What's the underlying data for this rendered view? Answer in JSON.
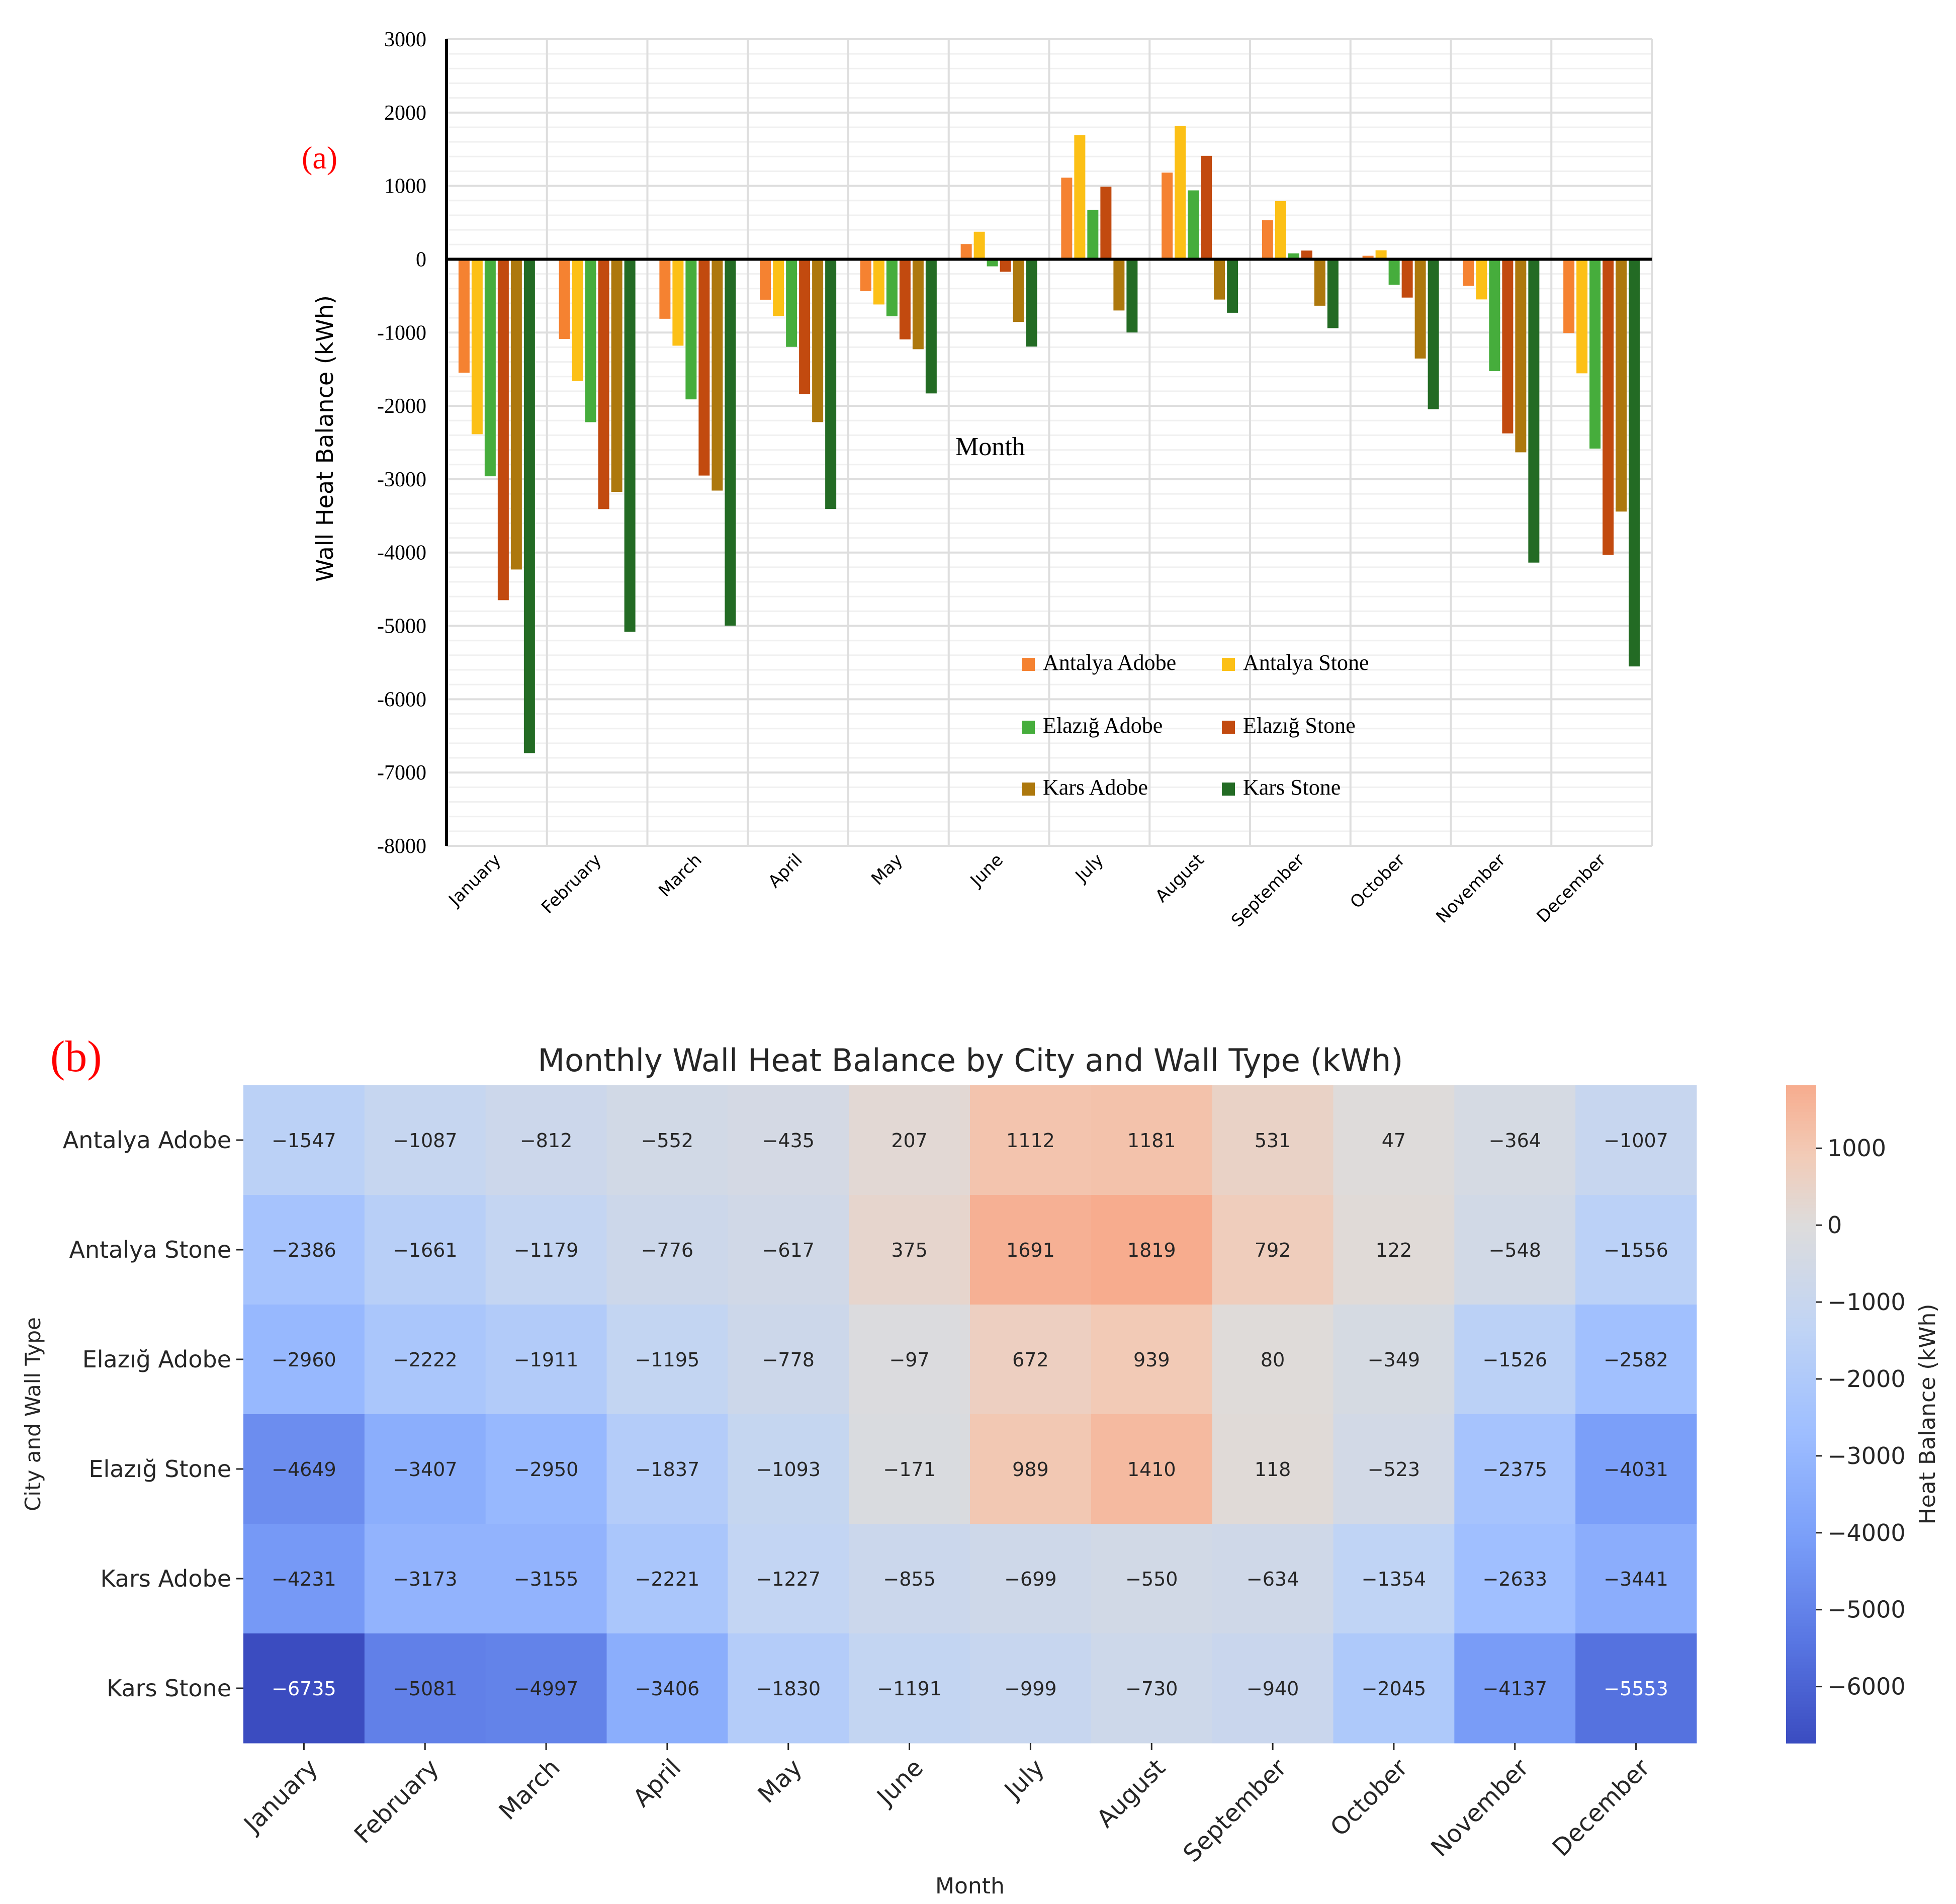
{
  "chart_data": [
    {
      "type": "bar",
      "panel_label": "(a)",
      "title": "",
      "xlabel": "Month",
      "ylabel": "Wall Heat Balance (kWh)",
      "ylim": [
        -8000,
        3000
      ],
      "yticks": [
        "3000",
        "2000",
        "1000",
        "0",
        "-1000",
        "-2000",
        "-3000",
        "-4000",
        "-5000",
        "-6000",
        "-7000",
        "-8000"
      ],
      "yticks_values": [
        3000,
        2000,
        1000,
        0,
        -1000,
        -2000,
        -3000,
        -4000,
        -5000,
        -6000,
        -7000,
        -8000
      ],
      "grid": true,
      "legend_position": "lower-right",
      "categories": [
        "January",
        "February",
        "March",
        "April",
        "May",
        "June",
        "July",
        "August",
        "September",
        "October",
        "November",
        "December"
      ],
      "series": [
        {
          "name": "Antalya Adobe",
          "color": "#f58231",
          "values": [
            -1547,
            -1087,
            -812,
            -552,
            -435,
            207,
            1112,
            1181,
            531,
            47,
            -364,
            -1007
          ]
        },
        {
          "name": "Antalya Stone",
          "color": "#fcc016",
          "values": [
            -2386,
            -1661,
            -1179,
            -776,
            -617,
            375,
            1691,
            1819,
            792,
            122,
            -548,
            -1556
          ]
        },
        {
          "name": "Elazığ Adobe",
          "color": "#46ad3c",
          "values": [
            -2960,
            -2222,
            -1911,
            -1195,
            -778,
            -97,
            672,
            939,
            80,
            -349,
            -1526,
            -2582
          ]
        },
        {
          "name": "Elazığ Stone",
          "color": "#c24a0f",
          "values": [
            -4649,
            -3407,
            -2950,
            -1837,
            -1093,
            -171,
            989,
            1410,
            118,
            -523,
            -2375,
            -4031
          ]
        },
        {
          "name": "Kars Adobe",
          "color": "#ad780d",
          "values": [
            -4231,
            -3173,
            -3155,
            -2221,
            -1227,
            -855,
            -699,
            -550,
            -634,
            -1354,
            -2633,
            -3441
          ]
        },
        {
          "name": "Kars Stone",
          "color": "#236b24",
          "values": [
            -6735,
            -5081,
            -4997,
            -3406,
            -1830,
            -1191,
            -999,
            -730,
            -940,
            -2045,
            -4137,
            -5553
          ]
        }
      ]
    },
    {
      "type": "heatmap",
      "panel_label": "(b)",
      "title": "Monthly Wall Heat Balance by City and Wall Type (kWh)",
      "xlabel": "Month",
      "ylabel": "City and Wall Type",
      "colorbar_label": "Heat Balance (kWh)",
      "colorbar_ticks": [
        "1000",
        "0",
        "−1000",
        "−2000",
        "−3000",
        "−4000",
        "−5000",
        "−6000"
      ],
      "colorbar_ticks_values": [
        1000,
        0,
        -1000,
        -2000,
        -3000,
        -4000,
        -5000,
        -6000
      ],
      "vmin": -6735,
      "vmax": 1819,
      "center": 0,
      "colormap": "coolwarm",
      "colormap_stops": [
        "#3b4cc0",
        "#5977e3",
        "#7b9ff9",
        "#9ebeff",
        "#c0d4f5",
        "#dddcdc",
        "#f2cbb7",
        "#f7ac8e"
      ],
      "columns": [
        "January",
        "February",
        "March",
        "April",
        "May",
        "June",
        "July",
        "August",
        "September",
        "October",
        "November",
        "December"
      ],
      "rows": [
        "Antalya Adobe",
        "Antalya Stone",
        "Elazığ Adobe",
        "Elazığ Stone",
        "Kars Adobe",
        "Kars Stone"
      ],
      "cell_labels": [
        [
          "−1547",
          "−1087",
          "−812",
          "−552",
          "−435",
          "207",
          "1112",
          "1181",
          "531",
          "47",
          "−364",
          "−1007"
        ],
        [
          "−2386",
          "−1661",
          "−1179",
          "−776",
          "−617",
          "375",
          "1691",
          "1819",
          "792",
          "122",
          "−548",
          "−1556"
        ],
        [
          "−2960",
          "−2222",
          "−1911",
          "−1195",
          "−778",
          "−97",
          "672",
          "939",
          "80",
          "−349",
          "−1526",
          "−2582"
        ],
        [
          "−4649",
          "−3407",
          "−2950",
          "−1837",
          "−1093",
          "−171",
          "989",
          "1410",
          "118",
          "−523",
          "−2375",
          "−4031"
        ],
        [
          "−4231",
          "−3173",
          "−3155",
          "−2221",
          "−1227",
          "−855",
          "−699",
          "−550",
          "−634",
          "−1354",
          "−2633",
          "−3441"
        ],
        [
          "−6735",
          "−5081",
          "−4997",
          "−3406",
          "−1830",
          "−1191",
          "−999",
          "−730",
          "−940",
          "−2045",
          "−4137",
          "−5553"
        ]
      ],
      "values": [
        [
          -1547,
          -1087,
          -812,
          -552,
          -435,
          207,
          1112,
          1181,
          531,
          47,
          -364,
          -1007
        ],
        [
          -2386,
          -1661,
          -1179,
          -776,
          -617,
          375,
          1691,
          1819,
          792,
          122,
          -548,
          -1556
        ],
        [
          -2960,
          -2222,
          -1911,
          -1195,
          -778,
          -97,
          672,
          939,
          80,
          -349,
          -1526,
          -2582
        ],
        [
          -4649,
          -3407,
          -2950,
          -1837,
          -1093,
          -171,
          989,
          1410,
          118,
          -523,
          -2375,
          -4031
        ],
        [
          -4231,
          -3173,
          -3155,
          -2221,
          -1227,
          -855,
          -699,
          -550,
          -634,
          -1354,
          -2633,
          -3441
        ],
        [
          -6735,
          -5081,
          -4997,
          -3406,
          -1830,
          -1191,
          -999,
          -730,
          -940,
          -2045,
          -4137,
          -5553
        ]
      ]
    }
  ]
}
